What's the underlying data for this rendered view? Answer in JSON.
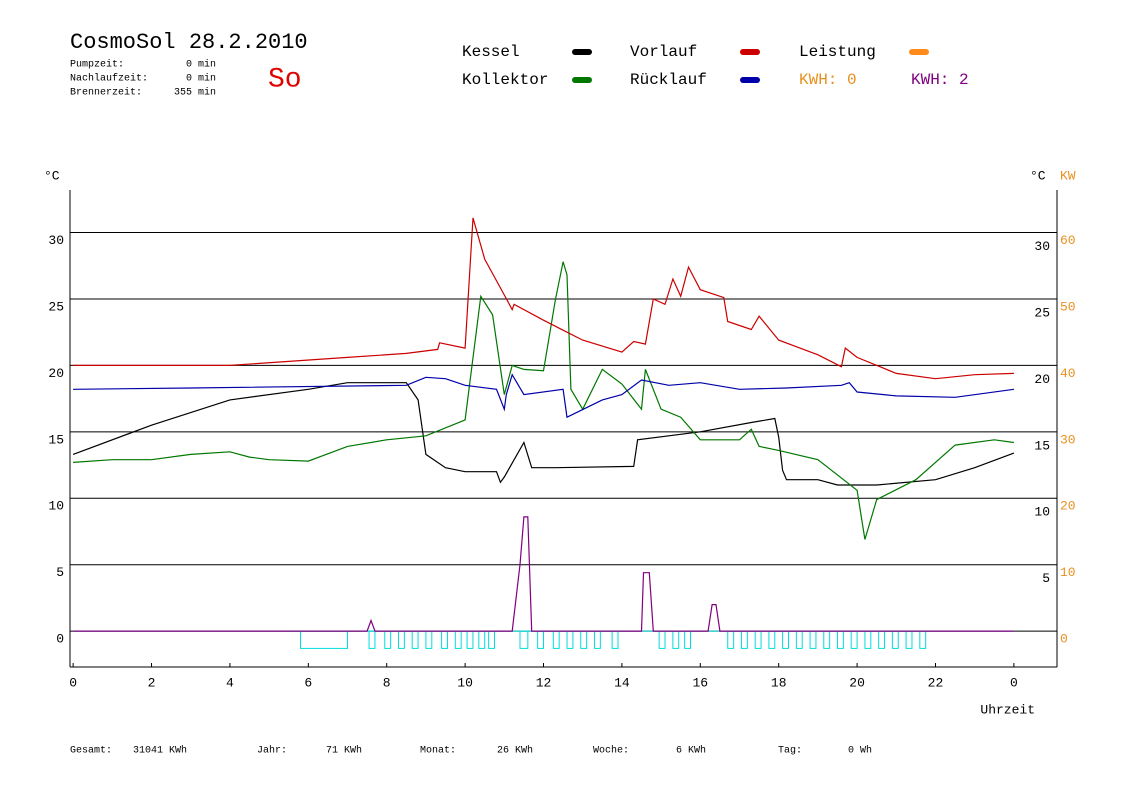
{
  "header": {
    "title": "CosmoSol 28.2.2010",
    "stats": [
      {
        "label": "Pumpzeit:",
        "value": "0 min"
      },
      {
        "label": "Nachlaufzeit:",
        "value": "0 min"
      },
      {
        "label": "Brennerzeit:",
        "value": "355 min"
      }
    ],
    "day": "So"
  },
  "footer": [
    {
      "label": "Gesamt:",
      "value": "31041 KWh"
    },
    {
      "label": "Jahr:",
      "value": "71 KWh"
    },
    {
      "label": "Monat:",
      "value": "26 KWh"
    },
    {
      "label": "Woche:",
      "value": "6 KWh"
    },
    {
      "label": "Tag:",
      "value": "0 Wh"
    }
  ],
  "chart_data": {
    "type": "line",
    "y_unit": "°C",
    "y2_unit": "°C",
    "y2_unit_kw": "KW",
    "xlabel": "Uhrzeit",
    "kwh_labels": [
      {
        "text": "KWH: 0",
        "color": "#e8901e"
      },
      {
        "text": "KWH: 2",
        "color": "#800080"
      }
    ],
    "xlim": [
      -0.08,
      25.1
    ],
    "ylim": [
      -2.7,
      33.2
    ],
    "y2lim": [
      -5.4,
      66.4
    ],
    "xticks": [
      0,
      2,
      4,
      6,
      8,
      10,
      12,
      14,
      16,
      18,
      20,
      22,
      {
        "value": 24,
        "label": "0"
      }
    ],
    "yticks": [
      0,
      5,
      10,
      15,
      20,
      25,
      30
    ],
    "yticks_right": [
      5,
      10,
      15,
      20,
      25,
      30
    ],
    "y2ticks": [
      0,
      10,
      20,
      30,
      40,
      50,
      60
    ],
    "grid": true,
    "series": [
      {
        "name": "Kessel",
        "color": "#000000",
        "x": [
          0,
          2,
          4,
          6,
          7,
          8.5,
          8.8,
          9.0,
          9.5,
          10.0,
          10.8,
          10.9,
          11.0,
          11.5,
          11.7,
          12.3,
          14.3,
          14.4,
          16,
          17.3,
          17.9,
          18.0,
          18.1,
          18.2,
          19,
          19.5,
          20.5,
          22,
          23,
          24
        ],
        "values": [
          13.3,
          15.5,
          17.4,
          18.2,
          18.7,
          18.7,
          17.4,
          13.3,
          12.3,
          12.0,
          12.0,
          11.2,
          11.6,
          14.2,
          12.3,
          12.3,
          12.4,
          14.4,
          15.0,
          15.7,
          16.0,
          14.6,
          12.1,
          11.4,
          11.4,
          11.0,
          11.0,
          11.4,
          12.3,
          13.4
        ]
      },
      {
        "name": "Kollektor",
        "color": "#007700",
        "x": [
          0,
          1,
          2,
          3,
          4,
          4.5,
          5,
          6,
          7,
          8,
          9,
          10,
          10.4,
          10.7,
          11.0,
          11.2,
          11.5,
          12.0,
          12.3,
          12.5,
          12.6,
          12.7,
          13.0,
          13.5,
          14,
          14.5,
          14.6,
          15.0,
          15.5,
          16.0,
          17.0,
          17.3,
          17.5,
          18,
          19,
          20,
          20.2,
          20.5,
          21.5,
          22.5,
          23.5,
          24
        ],
        "values": [
          12.7,
          12.9,
          12.9,
          13.3,
          13.5,
          13.1,
          12.9,
          12.8,
          13.9,
          14.4,
          14.7,
          15.9,
          25.2,
          23.8,
          17.8,
          20.0,
          19.7,
          19.6,
          24.9,
          27.8,
          26.8,
          18.2,
          16.7,
          19.7,
          18.6,
          16.7,
          19.7,
          16.7,
          16.1,
          14.4,
          14.4,
          15.2,
          13.9,
          13.6,
          12.9,
          10.6,
          6.9,
          9.9,
          11.4,
          14.0,
          14.4,
          14.2
        ]
      },
      {
        "name": "Vorlauf",
        "color": "#cc0000",
        "x": [
          0,
          4,
          7,
          8.5,
          9.3,
          9.35,
          10.0,
          10.2,
          10.5,
          11,
          11.2,
          11.25,
          12,
          12.6,
          13,
          14,
          14.3,
          14.6,
          14.8,
          15.1,
          15.3,
          15.5,
          15.7,
          16.0,
          16.6,
          16.7,
          17.3,
          17.5,
          18,
          19,
          19.6,
          19.7,
          20,
          21,
          22,
          23,
          24
        ],
        "values": [
          20.0,
          20.0,
          20.6,
          20.9,
          21.2,
          21.7,
          21.3,
          31.1,
          28.0,
          25.3,
          24.2,
          24.6,
          23.4,
          22.5,
          21.9,
          21.0,
          21.8,
          21.6,
          25.0,
          24.6,
          26.5,
          25.2,
          27.4,
          25.7,
          25.1,
          23.3,
          22.7,
          23.7,
          21.9,
          20.8,
          19.9,
          21.3,
          20.6,
          19.4,
          19.0,
          19.3,
          19.4
        ]
      },
      {
        "name": "Rücklauf",
        "color": "#0000aa",
        "x": [
          0,
          3,
          8.5,
          9.0,
          9.5,
          10.0,
          10.8,
          11.0,
          11.05,
          11.2,
          11.5,
          12.5,
          12.6,
          13.5,
          14,
          14.5,
          15.2,
          16,
          17,
          18.2,
          19.6,
          19.8,
          20,
          21,
          22.5,
          24
        ],
        "values": [
          18.2,
          18.3,
          18.5,
          19.1,
          19.0,
          18.5,
          18.2,
          16.7,
          17.8,
          19.3,
          17.8,
          18.2,
          16.1,
          17.4,
          17.8,
          18.9,
          18.5,
          18.7,
          18.2,
          18.3,
          18.5,
          18.7,
          18.0,
          17.7,
          17.6,
          18.2
        ]
      },
      {
        "name": "Leistung",
        "color": "#ff8c1a",
        "x": [],
        "values": []
      },
      {
        "color": "#800080",
        "x": [
          0,
          7.5,
          7.6,
          7.7,
          11.2,
          11.4,
          11.5,
          11.6,
          11.7,
          14.5,
          14.55,
          14.7,
          14.8,
          16.2,
          16.3,
          16.4,
          16.5,
          24
        ],
        "values": [
          0,
          0,
          0.8,
          0,
          0,
          5,
          8.6,
          8.6,
          0,
          0,
          4.4,
          4.4,
          0,
          0,
          2,
          2,
          0,
          0
        ]
      }
    ],
    "pump": {
      "color": "#00dddd",
      "level": -1.3,
      "intervals": [
        [
          5.8,
          7.0
        ],
        [
          7.55,
          7.7
        ],
        [
          7.95,
          8.1
        ],
        [
          8.3,
          8.45
        ],
        [
          8.65,
          8.8
        ],
        [
          9.0,
          9.15
        ],
        [
          9.4,
          9.55
        ],
        [
          9.75,
          9.9
        ],
        [
          10.05,
          10.2
        ],
        [
          10.35,
          10.5
        ],
        [
          10.6,
          10.75
        ],
        [
          11.4,
          11.6
        ],
        [
          11.85,
          12.0
        ],
        [
          12.25,
          12.4
        ],
        [
          12.6,
          12.75
        ],
        [
          12.95,
          13.1
        ],
        [
          13.3,
          13.45
        ],
        [
          13.75,
          13.9
        ],
        [
          14.95,
          15.1
        ],
        [
          15.3,
          15.45
        ],
        [
          15.6,
          15.75
        ],
        [
          16.7,
          16.85
        ],
        [
          17.05,
          17.2
        ],
        [
          17.4,
          17.55
        ],
        [
          17.75,
          17.9
        ],
        [
          18.1,
          18.25
        ],
        [
          18.45,
          18.6
        ],
        [
          18.8,
          18.95
        ],
        [
          19.15,
          19.3
        ],
        [
          19.5,
          19.65
        ],
        [
          19.85,
          20.0
        ],
        [
          20.2,
          20.35
        ],
        [
          20.55,
          20.7
        ],
        [
          20.9,
          21.05
        ],
        [
          21.25,
          21.4
        ],
        [
          21.6,
          21.75
        ]
      ]
    }
  }
}
